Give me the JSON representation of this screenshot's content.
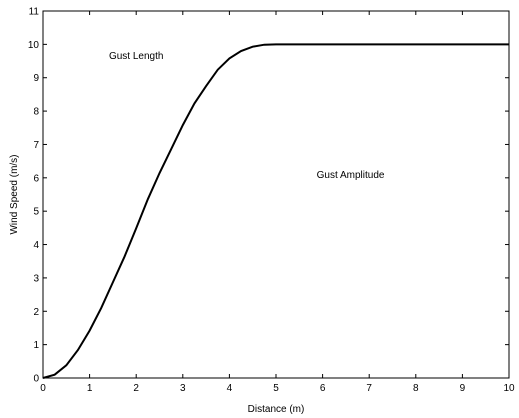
{
  "chart_data": {
    "type": "line",
    "title": "",
    "xlabel": "Distance (m)",
    "ylabel": "Wind Speed (m/s)",
    "xlim": [
      0,
      10
    ],
    "ylim": [
      0,
      11
    ],
    "x_ticks": [
      0,
      1,
      2,
      3,
      4,
      5,
      6,
      7,
      8,
      9,
      10
    ],
    "y_ticks": [
      0,
      1,
      2,
      3,
      4,
      5,
      6,
      7,
      8,
      9,
      10,
      11
    ],
    "grid": false,
    "series": [
      {
        "color": "#000000",
        "x": [
          0,
          0.25,
          0.5,
          0.75,
          1,
          1.25,
          1.5,
          1.75,
          2,
          2.25,
          2.5,
          2.75,
          3,
          3.25,
          3.5,
          3.75,
          4,
          4.25,
          4.5,
          4.75,
          5,
          6,
          7,
          8,
          9,
          10
        ],
        "y": [
          0,
          0.1,
          0.38,
          0.84,
          1.42,
          2.1,
          2.87,
          3.64,
          4.49,
          5.36,
          6.14,
          6.86,
          7.58,
          8.23,
          8.75,
          9.24,
          9.58,
          9.8,
          9.93,
          9.99,
          10,
          10,
          10,
          10,
          10,
          10
        ]
      }
    ],
    "annotations": [
      {
        "text": "Gust Length",
        "x": 2.0,
        "y": 9.67
      },
      {
        "text": "Gust Amplitude",
        "x": 6.6,
        "y": 6.1
      }
    ]
  }
}
